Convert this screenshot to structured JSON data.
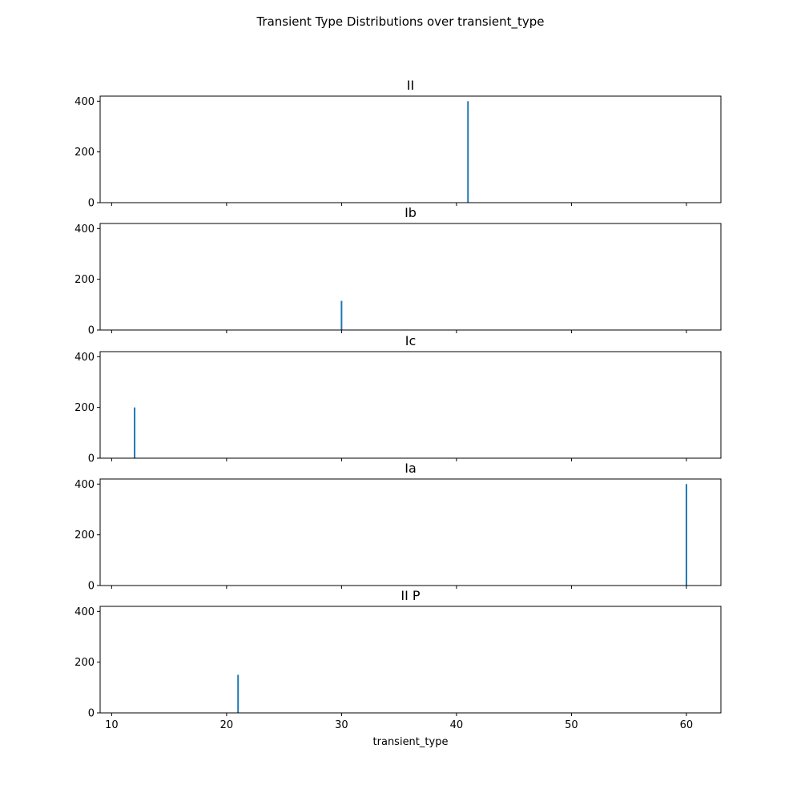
{
  "chart_data": {
    "type": "bar",
    "suptitle": "Transient Type Distributions over transient_type",
    "xlabel": "transient_type",
    "xlim": [
      9,
      63
    ],
    "ylim": [
      0,
      420
    ],
    "xticks": [
      10,
      20,
      30,
      40,
      50,
      60
    ],
    "yticks": [
      0,
      200,
      400
    ],
    "sharex": true,
    "grid": false,
    "bar_color": "#1f77b4",
    "subplots": [
      {
        "title": "II",
        "bars": [
          {
            "x": 41,
            "value": 400
          }
        ]
      },
      {
        "title": "Ib",
        "bars": [
          {
            "x": 30,
            "value": 115
          }
        ]
      },
      {
        "title": "Ic",
        "bars": [
          {
            "x": 12,
            "value": 200
          }
        ]
      },
      {
        "title": "Ia",
        "bars": [
          {
            "x": 60,
            "value": 400
          }
        ]
      },
      {
        "title": "II P",
        "bars": [
          {
            "x": 21,
            "value": 150
          }
        ]
      }
    ]
  }
}
